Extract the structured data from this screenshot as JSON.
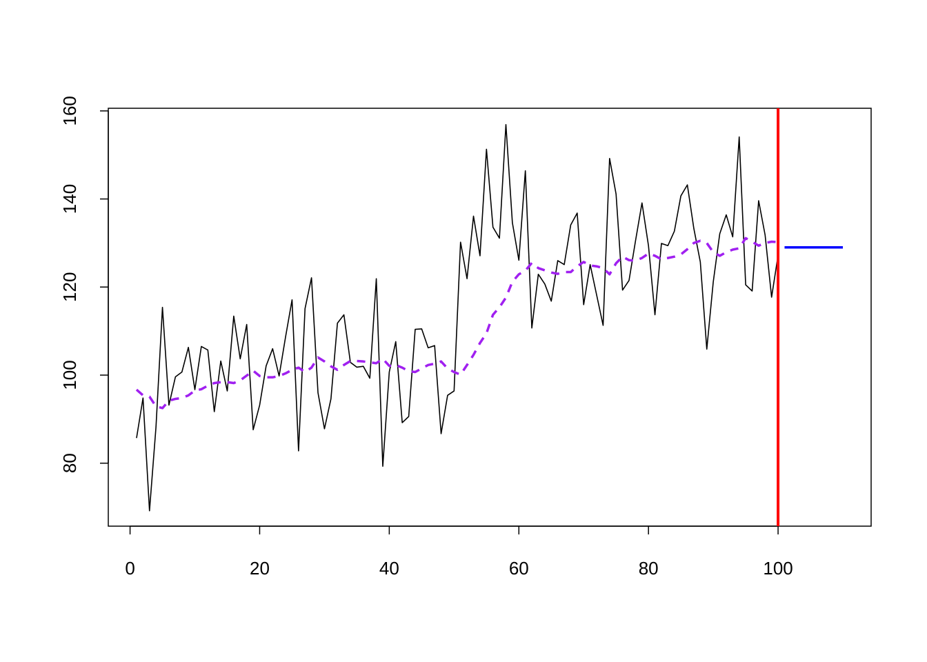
{
  "chart_data": {
    "type": "line",
    "x": [
      1,
      2,
      3,
      4,
      5,
      6,
      7,
      8,
      9,
      10,
      11,
      12,
      13,
      14,
      15,
      16,
      17,
      18,
      19,
      20,
      21,
      22,
      23,
      24,
      25,
      26,
      27,
      28,
      29,
      30,
      31,
      32,
      33,
      34,
      35,
      36,
      37,
      38,
      39,
      40,
      41,
      42,
      43,
      44,
      45,
      46,
      47,
      48,
      49,
      50,
      51,
      52,
      53,
      54,
      55,
      56,
      57,
      58,
      59,
      60,
      61,
      62,
      63,
      64,
      65,
      66,
      67,
      68,
      69,
      70,
      71,
      72,
      73,
      74,
      75,
      76,
      77,
      78,
      79,
      80,
      81,
      82,
      83,
      84,
      85,
      86,
      87,
      88,
      89,
      90,
      91,
      92,
      93,
      94,
      95,
      96,
      97,
      98,
      99,
      100
    ],
    "series": [
      {
        "color": "#000000",
        "dashed": false,
        "values": [
          85.7,
          94.8,
          69.2,
          88.2,
          115.4,
          93.2,
          99.6,
          100.7,
          106.3,
          96.7,
          106.5,
          105.7,
          91.7,
          103.2,
          96.4,
          113.4,
          103.7,
          111.5,
          87.6,
          93.2,
          102.1,
          106.0,
          99.8,
          108.7,
          117.1,
          82.8,
          115.1,
          122.1,
          96.0,
          87.8,
          94.6,
          111.8,
          113.7,
          102.9,
          101.8,
          102.0,
          99.3,
          121.9,
          79.3,
          100.7,
          107.6,
          89.2,
          90.6,
          110.4,
          110.5,
          106.2,
          106.7,
          86.7,
          95.4,
          96.4,
          130.2,
          121.9,
          136.1,
          127.1,
          151.3,
          133.6,
          131.1,
          156.9,
          134.6,
          126.1,
          146.4,
          110.7,
          122.9,
          120.7,
          116.8,
          126.0,
          125.1,
          134.1,
          136.8,
          116.0,
          125.1,
          118.2,
          111.3,
          149.2,
          141.1,
          119.3,
          121.5,
          130.5,
          139.1,
          129.4,
          113.7,
          129.9,
          129.4,
          132.7,
          140.7,
          143.2,
          133.3,
          125.7,
          105.9,
          121.2,
          132.1,
          136.4,
          131.4,
          154.1,
          120.5,
          119.1,
          139.6,
          131.8,
          117.7,
          127.2
        ]
      },
      {
        "color": "#a020f0",
        "dashed": true,
        "values": [
          96.7,
          95.4,
          95.1,
          92.9,
          92.5,
          94.2,
          94.6,
          94.8,
          95.4,
          96.5,
          96.8,
          97.6,
          98.2,
          98.4,
          98.4,
          98.2,
          98.8,
          99.9,
          101.0,
          99.8,
          99.5,
          99.5,
          99.8,
          100.4,
          101.2,
          101.7,
          100.7,
          101.7,
          104.0,
          103.1,
          102.0,
          101.2,
          102.3,
          103.2,
          103.2,
          103.1,
          102.9,
          102.7,
          103.7,
          102.1,
          102.3,
          101.7,
          100.9,
          100.7,
          101.5,
          102.3,
          102.6,
          103.1,
          101.5,
          100.7,
          100.1,
          102.3,
          104.6,
          107.3,
          109.5,
          113.7,
          115.4,
          117.6,
          121.2,
          122.9,
          123.7,
          125.5,
          124.3,
          123.8,
          123.3,
          123.0,
          123.4,
          123.4,
          124.7,
          125.7,
          124.9,
          124.7,
          124.3,
          122.9,
          125.4,
          126.9,
          126.1,
          126.0,
          126.6,
          127.6,
          127.1,
          126.3,
          126.6,
          126.9,
          127.4,
          128.6,
          130.0,
          130.5,
          130.0,
          127.9,
          127.1,
          127.9,
          128.5,
          128.8,
          131.1,
          130.3,
          129.4,
          130.0,
          130.3,
          130.2
        ]
      },
      {
        "color": "#0000ff",
        "dashed": false,
        "x": [
          101,
          110
        ],
        "values": [
          129.0,
          129.0
        ]
      }
    ],
    "vline": {
      "x": 100,
      "color": "#ff0000"
    },
    "xlim": [
      -3.36,
      114.36
    ],
    "ylim": [
      65.7,
      160.6
    ],
    "xticks": [
      0,
      20,
      40,
      60,
      80,
      100
    ],
    "yticks": [
      80,
      100,
      120,
      140,
      160
    ]
  }
}
